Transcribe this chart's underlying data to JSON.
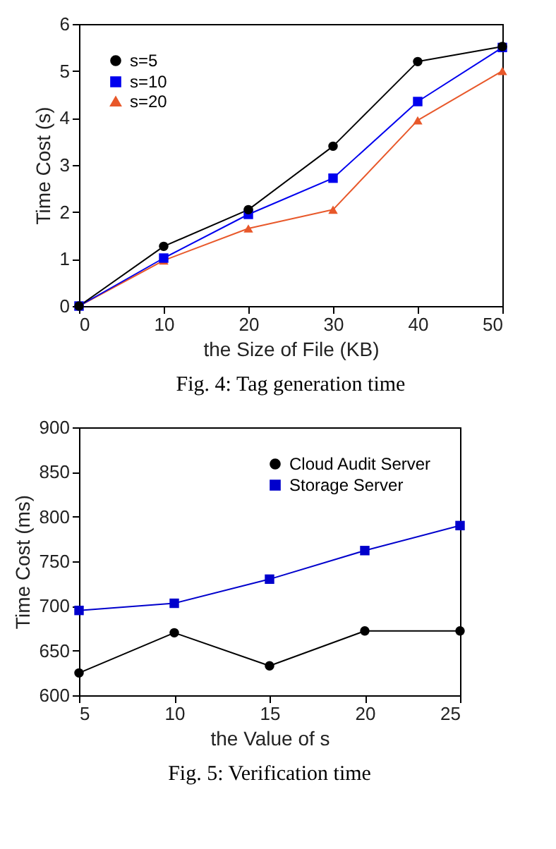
{
  "chart_data": [
    {
      "type": "line",
      "xlabel": "the Size of File (KB)",
      "ylabel": "Time Cost (s)",
      "x": [
        0,
        10,
        20,
        30,
        40,
        50
      ],
      "series": [
        {
          "name": "s=5",
          "color": "#000000",
          "marker": "circle",
          "values": [
            0,
            1.27,
            2.05,
            3.4,
            5.2,
            5.52
          ]
        },
        {
          "name": "s=10",
          "color": "#0000ee",
          "marker": "square",
          "values": [
            0,
            1.02,
            1.95,
            2.72,
            4.35,
            5.5
          ]
        },
        {
          "name": "s=20",
          "color": "#e8582a",
          "marker": "triangle",
          "values": [
            0,
            0.97,
            1.65,
            2.05,
            3.95,
            5.0
          ]
        }
      ],
      "xlim": [
        0,
        50
      ],
      "xticks": [
        0,
        10,
        20,
        30,
        40,
        50
      ],
      "ylim": [
        0,
        6
      ],
      "yticks": [
        0,
        1,
        2,
        3,
        4,
        5,
        6
      ],
      "grid": false,
      "legend": "top left",
      "line_style": "solid",
      "annotations": [
        "Fig. 4: Tag generation time"
      ]
    },
    {
      "type": "line",
      "xlabel": "the Value of s",
      "ylabel": "Time Cost (ms)",
      "x": [
        5,
        10,
        15,
        20,
        25
      ],
      "series": [
        {
          "name": "Cloud Audit Server",
          "color": "#000000",
          "marker": "circle",
          "values": [
            625,
            670,
            633,
            672,
            672
          ]
        },
        {
          "name": "Storage Server",
          "color": "#0000cc",
          "marker": "square",
          "values": [
            695,
            703,
            730,
            762,
            790
          ]
        }
      ],
      "xlim": [
        5,
        25
      ],
      "xticks": [
        5,
        10,
        15,
        20,
        25
      ],
      "ylim": [
        600,
        900
      ],
      "yticks": [
        600,
        650,
        700,
        750,
        800,
        850,
        900
      ],
      "grid": false,
      "legend": "top right",
      "line_style": "solid",
      "annotations": [
        "Fig. 5: Verification time"
      ]
    }
  ]
}
